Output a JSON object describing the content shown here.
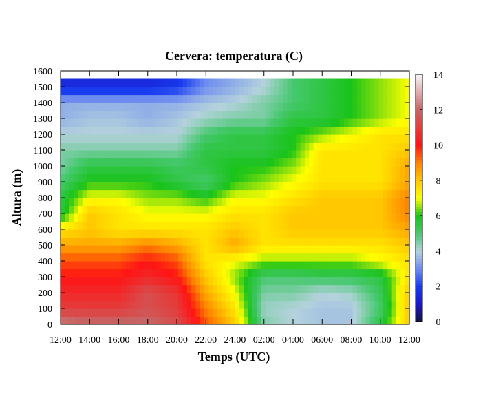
{
  "chart_data": {
    "type": "heatmap",
    "title": "Cervera: temperatura (C)",
    "xlabel": "Temps (UTC)",
    "ylabel": "Altura (m)",
    "x_ticks": [
      "12:00",
      "14:00",
      "16:00",
      "18:00",
      "20:00",
      "22:00",
      "24:00",
      "02:00",
      "04:00",
      "06:00",
      "08:00",
      "10:00",
      "12:00"
    ],
    "y_ticks": [
      0,
      100,
      200,
      300,
      400,
      500,
      600,
      700,
      800,
      900,
      1000,
      1100,
      1200,
      1300,
      1400,
      1500,
      1600
    ],
    "ylim": [
      0,
      1600
    ],
    "data_ylim": [
      0,
      1550
    ],
    "x_hours": [
      0,
      24
    ],
    "colorbar": {
      "range": [
        0,
        14
      ],
      "ticks": [
        0,
        2,
        4,
        6,
        8,
        10,
        12,
        14
      ]
    },
    "times_h": [
      0,
      2,
      4,
      6,
      8,
      10,
      12,
      14,
      16,
      18,
      20,
      22,
      24
    ],
    "heights_m": [
      0,
      100,
      200,
      300,
      400,
      500,
      600,
      700,
      800,
      900,
      1000,
      1100,
      1200,
      1300,
      1400,
      1500
    ],
    "temperature": [
      [
        12.5,
        12.2,
        12.2,
        12.2,
        11.5,
        9.5,
        8.0,
        4.5,
        4.0,
        3.8,
        3.8,
        5.5,
        8.0
      ],
      [
        11.0,
        11.0,
        11.0,
        11.5,
        11.0,
        9.0,
        7.5,
        4.2,
        4.0,
        3.8,
        3.8,
        5.0,
        8.0
      ],
      [
        10.5,
        10.5,
        10.5,
        11.5,
        10.8,
        8.5,
        7.0,
        4.5,
        4.5,
        4.0,
        4.2,
        5.2,
        8.0
      ],
      [
        10.0,
        10.0,
        10.0,
        10.5,
        10.0,
        8.0,
        6.5,
        5.0,
        5.0,
        5.2,
        5.2,
        5.5,
        7.5
      ],
      [
        9.5,
        9.5,
        9.5,
        10.0,
        9.5,
        7.5,
        7.0,
        6.5,
        6.5,
        6.5,
        6.5,
        7.0,
        7.5
      ],
      [
        8.5,
        8.5,
        8.5,
        9.0,
        8.5,
        7.5,
        8.5,
        7.5,
        7.5,
        7.5,
        7.5,
        7.5,
        8.0
      ],
      [
        7.5,
        8.0,
        7.5,
        7.5,
        7.5,
        7.5,
        8.0,
        7.5,
        8.0,
        8.0,
        8.0,
        8.0,
        8.5
      ],
      [
        5.5,
        8.0,
        7.5,
        7.0,
        7.0,
        7.0,
        7.5,
        7.5,
        8.0,
        8.0,
        8.0,
        8.0,
        9.0
      ],
      [
        5.5,
        7.0,
        7.0,
        6.5,
        6.5,
        6.0,
        7.0,
        7.0,
        7.5,
        8.0,
        8.0,
        8.0,
        9.0
      ],
      [
        5.0,
        6.0,
        6.0,
        6.0,
        5.5,
        5.0,
        6.0,
        6.5,
        7.0,
        7.5,
        7.5,
        7.5,
        8.5
      ],
      [
        4.5,
        5.5,
        5.5,
        5.5,
        5.2,
        5.5,
        6.0,
        6.0,
        6.5,
        7.5,
        7.5,
        7.5,
        8.5
      ],
      [
        4.5,
        4.5,
        4.5,
        4.5,
        4.5,
        5.5,
        5.5,
        5.5,
        6.0,
        7.5,
        7.5,
        7.5,
        8.0
      ],
      [
        4.0,
        4.0,
        4.0,
        4.0,
        4.0,
        5.0,
        5.5,
        5.5,
        6.0,
        6.5,
        7.0,
        7.5,
        7.5
      ],
      [
        3.5,
        3.8,
        3.8,
        3.5,
        3.8,
        4.2,
        4.5,
        4.5,
        5.5,
        5.5,
        6.0,
        6.5,
        7.0
      ],
      [
        3.5,
        3.5,
        3.5,
        3.5,
        3.5,
        3.8,
        4.0,
        4.5,
        5.0,
        5.5,
        6.0,
        6.5,
        7.0
      ],
      [
        1.5,
        1.5,
        1.5,
        1.5,
        1.8,
        3.0,
        3.5,
        4.0,
        5.0,
        5.5,
        6.0,
        6.5,
        7.0
      ]
    ]
  }
}
